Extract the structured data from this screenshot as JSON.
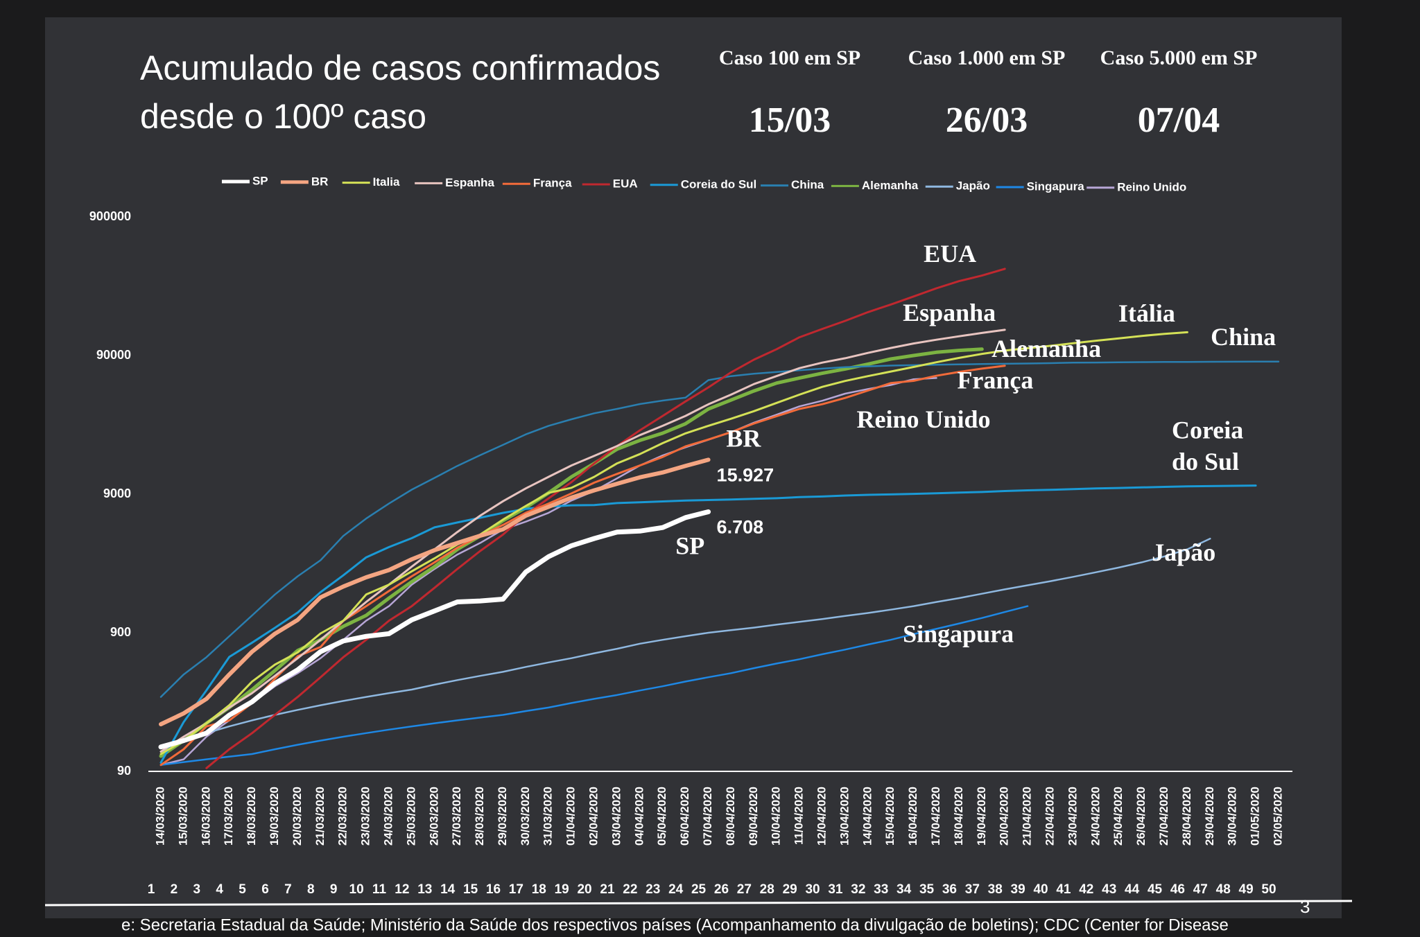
{
  "chart_data": {
    "type": "line",
    "title_lines": [
      "Acumulado de casos confirmados",
      "desde o 100º caso"
    ],
    "milestones": [
      {
        "label": "Caso 100 em SP",
        "date": "15/03"
      },
      {
        "label": "Caso 1.000 em SP",
        "date": "26/03"
      },
      {
        "label": "Caso 5.000 em SP",
        "date": "07/04"
      }
    ],
    "categories": [
      "14/03/2020",
      "15/03/2020",
      "16/03/2020",
      "17/03/2020",
      "18/03/2020",
      "19/03/2020",
      "20/03/2020",
      "21/03/2020",
      "22/03/2020",
      "23/03/2020",
      "24/03/2020",
      "25/03/2020",
      "26/03/2020",
      "27/03/2020",
      "28/03/2020",
      "29/03/2020",
      "30/03/2020",
      "31/03/2020",
      "01/04/2020",
      "02/04/2020",
      "03/04/2020",
      "04/04/2020",
      "05/04/2020",
      "06/04/2020",
      "07/04/2020",
      "08/04/2020",
      "09/04/2020",
      "10/04/2020",
      "11/04/2020",
      "12/04/2020",
      "13/04/2020",
      "14/04/2020",
      "15/04/2020",
      "16/04/2020",
      "17/04/2020",
      "18/04/2020",
      "19/04/2020",
      "20/04/2020",
      "21/04/2020",
      "22/04/2020",
      "23/04/2020",
      "24/04/2020",
      "25/04/2020",
      "26/04/2020",
      "27/04/2020",
      "28/04/2020",
      "29/04/2020",
      "30/04/2020",
      "01/05/2020",
      "02/05/2020"
    ],
    "day_numbers": [
      1,
      2,
      3,
      4,
      5,
      6,
      7,
      8,
      9,
      10,
      11,
      12,
      13,
      14,
      15,
      16,
      17,
      18,
      19,
      20,
      21,
      22,
      23,
      24,
      25,
      26,
      27,
      28,
      29,
      30,
      31,
      32,
      33,
      34,
      35,
      36,
      37,
      38,
      39,
      40,
      41,
      42,
      43,
      44,
      45,
      46,
      47,
      48,
      49,
      50
    ],
    "log_scale": true,
    "ylim": [
      90,
      900000
    ],
    "yticks": [
      90,
      900,
      9000,
      90000,
      900000
    ],
    "legend": "top",
    "series": [
      {
        "name": "SP",
        "label": [
          "SP"
        ],
        "color": "#ffffff",
        "values": [
          135,
          150,
          170,
          229,
          286,
          388,
          486,
          657,
          786,
          848,
          886,
          1115,
          1294,
          1503,
          1527,
          1573,
          2470,
          3190,
          3820,
          4310,
          4790,
          4870,
          5170,
          6100,
          6708,
          null,
          null,
          null,
          null,
          null,
          null,
          null,
          null,
          null,
          null,
          null,
          null,
          null,
          null,
          null,
          null,
          null,
          null,
          null,
          null,
          null,
          null,
          null,
          null,
          null
        ],
        "value_labels": [
          null,
          null,
          null,
          null,
          null,
          null,
          null,
          null,
          null,
          null,
          null,
          null,
          null,
          null,
          null,
          null,
          null,
          null,
          null,
          null,
          null,
          null,
          null,
          null,
          "6.708",
          null,
          null,
          null,
          null,
          null,
          null,
          null,
          null,
          null,
          null,
          null,
          null,
          null,
          null,
          null,
          null,
          null,
          null,
          null,
          null,
          null,
          null,
          null,
          null,
          null
        ]
      },
      {
        "name": "BR",
        "label": [
          "BR"
        ],
        "color": "#f4a582",
        "values": [
          197,
          236,
          300,
          450,
          657,
          886,
          1115,
          1620,
          1940,
          2260,
          2550,
          3050,
          3550,
          4000,
          4510,
          5020,
          6290,
          7300,
          8500,
          9590,
          10700,
          11900,
          12900,
          14400,
          15927,
          null,
          null,
          null,
          null,
          null,
          null,
          null,
          null,
          null,
          null,
          null,
          null,
          null,
          null,
          null,
          null,
          null,
          null,
          null,
          null,
          null,
          null,
          null,
          null,
          null
        ],
        "value_labels": [
          null,
          null,
          null,
          null,
          null,
          null,
          null,
          null,
          null,
          null,
          null,
          null,
          null,
          null,
          null,
          null,
          null,
          null,
          null,
          null,
          null,
          null,
          null,
          null,
          "15.927",
          null,
          null,
          null,
          null,
          null,
          null,
          null,
          null,
          null,
          null,
          null,
          null,
          null,
          null,
          null,
          null,
          null,
          null,
          null,
          null,
          null,
          null,
          null,
          null,
          null
        ]
      },
      {
        "name": "Italia",
        "label": [
          "Itália"
        ],
        "color": "#d4e157",
        "values": [
          120,
          150,
          200,
          270,
          400,
          530,
          650,
          890,
          1100,
          1700,
          2000,
          2500,
          3100,
          3900,
          4600,
          5900,
          7400,
          9200,
          10000,
          12000,
          15000,
          17500,
          21000,
          24700,
          28000,
          31500,
          35700,
          41000,
          47000,
          53500,
          59000,
          63900,
          69000,
          74400,
          80500,
          86500,
          92500,
          97700,
          101700,
          105800,
          110500,
          115200,
          119800,
          124600,
          128900,
          132500,
          null,
          null,
          null,
          null
        ]
      },
      {
        "name": "Espanha",
        "label": [
          "Espanha"
        ],
        "color": "#e8c4c0",
        "values": [
          125,
          160,
          200,
          260,
          330,
          440,
          590,
          800,
          1100,
          1500,
          2000,
          2700,
          3600,
          4800,
          6300,
          8000,
          9900,
          12000,
          14500,
          17000,
          20000,
          24000,
          28000,
          33000,
          40000,
          47000,
          56000,
          64000,
          73000,
          80000,
          86000,
          94000,
          102000,
          110000,
          117000,
          124000,
          131000,
          138000,
          null,
          null,
          null,
          null,
          null,
          null,
          null,
          null,
          null,
          null,
          null,
          null
        ]
      },
      {
        "name": "França",
        "label": [
          "França"
        ],
        "color": "#f26b3a",
        "values": [
          100,
          130,
          190,
          210,
          280,
          420,
          610,
          710,
          1100,
          1400,
          1800,
          2300,
          2900,
          3700,
          4500,
          5400,
          6600,
          7700,
          9100,
          10900,
          12600,
          14500,
          16700,
          19900,
          22300,
          25200,
          29100,
          32900,
          37100,
          40100,
          44500,
          50300,
          56900,
          59100,
          64300,
          68600,
          72400,
          76000,
          null,
          null,
          null,
          null,
          null,
          null,
          null,
          null,
          null,
          null,
          null,
          null
        ]
      },
      {
        "name": "EUA",
        "label": [
          "EUA"
        ],
        "color": "#c0282f",
        "values": [
          null,
          null,
          95,
          130,
          170,
          230,
          310,
          430,
          600,
          800,
          1100,
          1400,
          1900,
          2600,
          3500,
          4600,
          6400,
          8400,
          11000,
          15000,
          20000,
          26000,
          33000,
          42000,
          53000,
          68000,
          84000,
          100000,
          122000,
          140000,
          160000,
          185000,
          210000,
          240000,
          275000,
          310000,
          340000,
          380000,
          null,
          null,
          null,
          null,
          null,
          null,
          null,
          null,
          null,
          null,
          null,
          null
        ]
      },
      {
        "name": "Coreia do Sul",
        "label": [
          "Coreia",
          "do Sul"
        ],
        "color": "#1a9ad6",
        "values": [
          104,
          204,
          346,
          602,
          763,
          977,
          1261,
          1766,
          2337,
          3150,
          3736,
          4335,
          5186,
          5621,
          6088,
          6593,
          7041,
          7313,
          7478,
          7513,
          7755,
          7869,
          7979,
          8086,
          8162,
          8236,
          8320,
          8413,
          8565,
          8652,
          8799,
          8897,
          8961,
          9037,
          9137,
          9241,
          9332,
          9478,
          9583,
          9661,
          9786,
          9887,
          9976,
          10062,
          10156,
          10237,
          10284,
          10331,
          10384,
          null
        ]
      },
      {
        "name": "China",
        "label": [
          "China"
        ],
        "color": "#2a7fb0",
        "values": [
          310,
          450,
          600,
          850,
          1200,
          1700,
          2300,
          3000,
          4500,
          6000,
          7700,
          9700,
          11800,
          14400,
          17200,
          20400,
          24300,
          28000,
          31200,
          34500,
          37100,
          40200,
          42600,
          44700,
          59800,
          63900,
          66500,
          68500,
          70500,
          72400,
          74300,
          75200,
          76200,
          76700,
          77200,
          77700,
          78100,
          78500,
          78800,
          79300,
          79900,
          80100,
          80400,
          80700,
          80900,
          81000,
          81100,
          81200,
          81300,
          81400
        ]
      },
      {
        "name": "Alemanha",
        "label": [
          "Alemanha"
        ],
        "color": "#7cb342",
        "values": [
          116,
          150,
          200,
          260,
          350,
          480,
          670,
          800,
          1000,
          1200,
          1600,
          2100,
          2700,
          3600,
          4500,
          5800,
          7200,
          9200,
          12000,
          15000,
          19000,
          22000,
          24800,
          29000,
          37000,
          43000,
          50000,
          57000,
          62000,
          67000,
          72000,
          78000,
          85000,
          90000,
          95000,
          98000,
          100000,
          null,
          null,
          null,
          null,
          null,
          null,
          null,
          null,
          null,
          null,
          null,
          null,
          null
        ]
      },
      {
        "name": "Japão",
        "label": [
          "Japão"
        ],
        "color": "#8fb8e0",
        "values": [
          125,
          150,
          170,
          190,
          210,
          230,
          250,
          270,
          290,
          310,
          330,
          350,
          380,
          410,
          440,
          470,
          510,
          550,
          590,
          640,
          690,
          750,
          800,
          850,
          900,
          940,
          980,
          1030,
          1080,
          1130,
          1190,
          1250,
          1320,
          1400,
          1500,
          1600,
          1720,
          1850,
          1980,
          2120,
          2280,
          2460,
          2660,
          2900,
          3200,
          3600,
          4300,
          null,
          null,
          null
        ]
      },
      {
        "name": "Singapura",
        "label": [
          "Singapura"
        ],
        "color": "#1e88e5",
        "values": [
          100,
          105,
          110,
          115,
          120,
          130,
          140,
          150,
          160,
          170,
          180,
          190,
          200,
          210,
          220,
          230,
          245,
          260,
          280,
          300,
          320,
          345,
          370,
          400,
          430,
          460,
          500,
          540,
          580,
          630,
          680,
          740,
          800,
          880,
          960,
          1050,
          1150,
          1270,
          1400,
          null,
          null,
          null,
          null,
          null,
          null,
          null,
          null,
          null,
          null,
          null
        ]
      },
      {
        "name": "Reino Unido",
        "label": [
          "Reino Unido"
        ],
        "color": "#b7a6d6",
        "values": [
          100,
          110,
          160,
          210,
          280,
          370,
          460,
          590,
          800,
          1100,
          1400,
          2000,
          2600,
          3300,
          4000,
          5000,
          5700,
          6600,
          8100,
          9500,
          11700,
          14500,
          17100,
          19600,
          22200,
          25200,
          29500,
          33700,
          38700,
          42500,
          47800,
          51600,
          55200,
          60700,
          62000,
          null,
          null,
          null,
          null,
          null,
          null,
          null,
          null,
          null,
          null,
          null,
          null,
          null,
          null,
          null
        ]
      }
    ],
    "source": "e: Secretaria Estadual da Saúde; Ministério da Saúde dos respectivos países (Acompanhamento da divulgação de boletins); CDC (Center for Disease",
    "page_number": "3"
  }
}
